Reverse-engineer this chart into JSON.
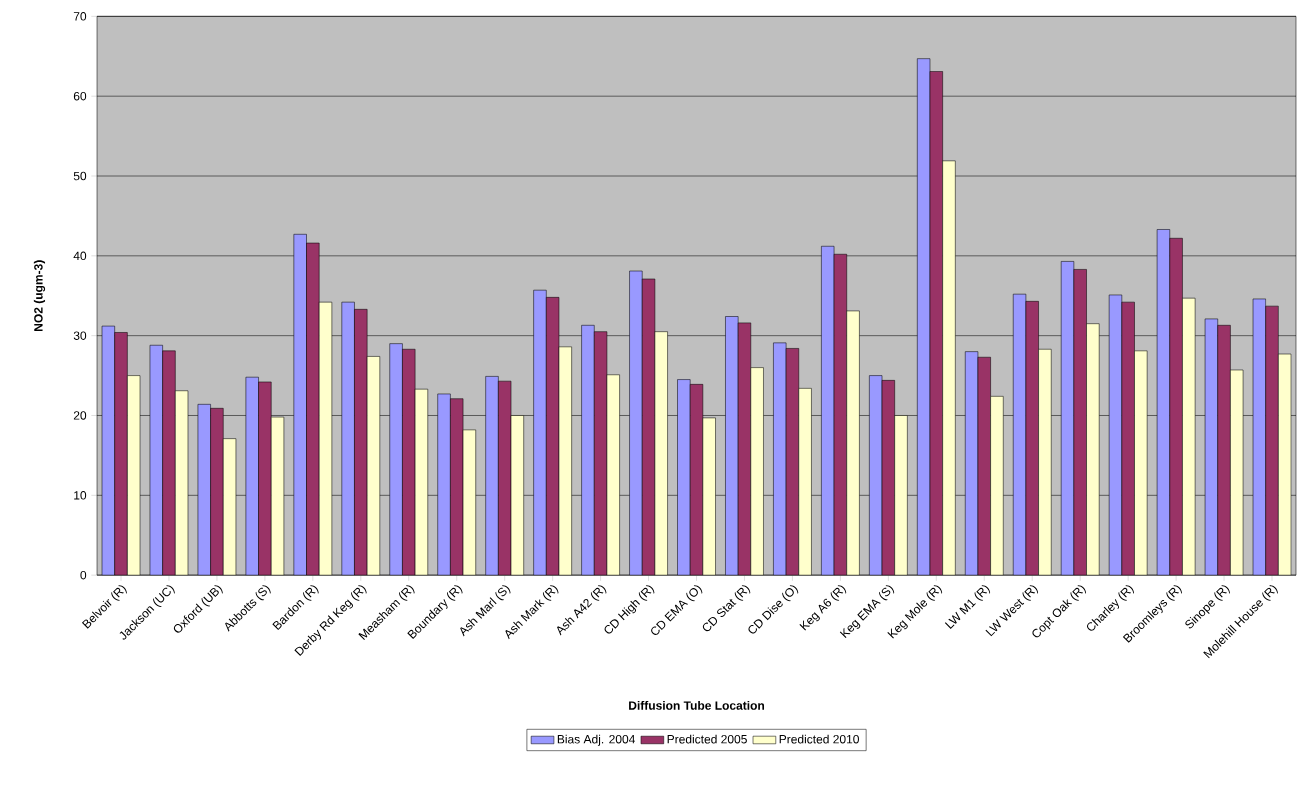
{
  "chart_data": {
    "type": "bar",
    "xlabel": "Diffusion Tube Location",
    "ylabel": "NO2 (ugm-3)",
    "categories": [
      "Belvoir (R)",
      "Jackson (UC)",
      "Oxford (UB)",
      "Abbotts (S)",
      "Bardon (R)",
      "Derby Rd Keg (R)",
      "Measham (R)",
      "Boundary (R)",
      "Ash Marl (S)",
      "Ash Mark (R)",
      "Ash A42 (R)",
      "CD High (R)",
      "CD EMA (O)",
      "CD Stat (R)",
      "CD Dise (O)",
      "Keg A6 (R)",
      "Keg EMA (S)",
      "Keg Mole (R)",
      "LW M1 (R)",
      "LW West (R)",
      "Copt Oak (R)",
      "Charley (R)",
      "Broomleys (R)",
      "Sinope (R)",
      "Molehill House (R)"
    ],
    "series": [
      {
        "name": "Bias Adj. 2004",
        "color": "#9999ff",
        "values": [
          31.2,
          28.8,
          21.4,
          24.8,
          42.7,
          34.2,
          29.0,
          22.7,
          24.9,
          35.7,
          31.3,
          38.1,
          24.5,
          32.4,
          29.1,
          41.2,
          25.0,
          64.7,
          28.0,
          35.2,
          39.3,
          35.1,
          43.3,
          32.1,
          34.6
        ]
      },
      {
        "name": "Predicted 2005",
        "color": "#993366",
        "values": [
          30.4,
          28.1,
          20.9,
          24.2,
          41.6,
          33.3,
          28.3,
          22.1,
          24.3,
          34.8,
          30.5,
          37.1,
          23.9,
          31.6,
          28.4,
          40.2,
          24.4,
          63.1,
          27.3,
          34.3,
          38.3,
          34.2,
          42.2,
          31.3,
          33.7
        ]
      },
      {
        "name": "Predicted 2010",
        "color": "#ffffcc",
        "values": [
          25.0,
          23.1,
          17.1,
          19.8,
          34.2,
          27.4,
          23.3,
          18.2,
          20.0,
          28.6,
          25.1,
          30.5,
          19.7,
          26.0,
          23.4,
          33.1,
          20.0,
          51.9,
          22.4,
          28.3,
          31.5,
          28.1,
          34.7,
          25.7,
          27.7
        ]
      }
    ],
    "ylim": [
      0,
      70
    ],
    "yticks": [
      0,
      10,
      20,
      30,
      40,
      50,
      60,
      70
    ],
    "grid": "y",
    "legend": "bottom"
  }
}
